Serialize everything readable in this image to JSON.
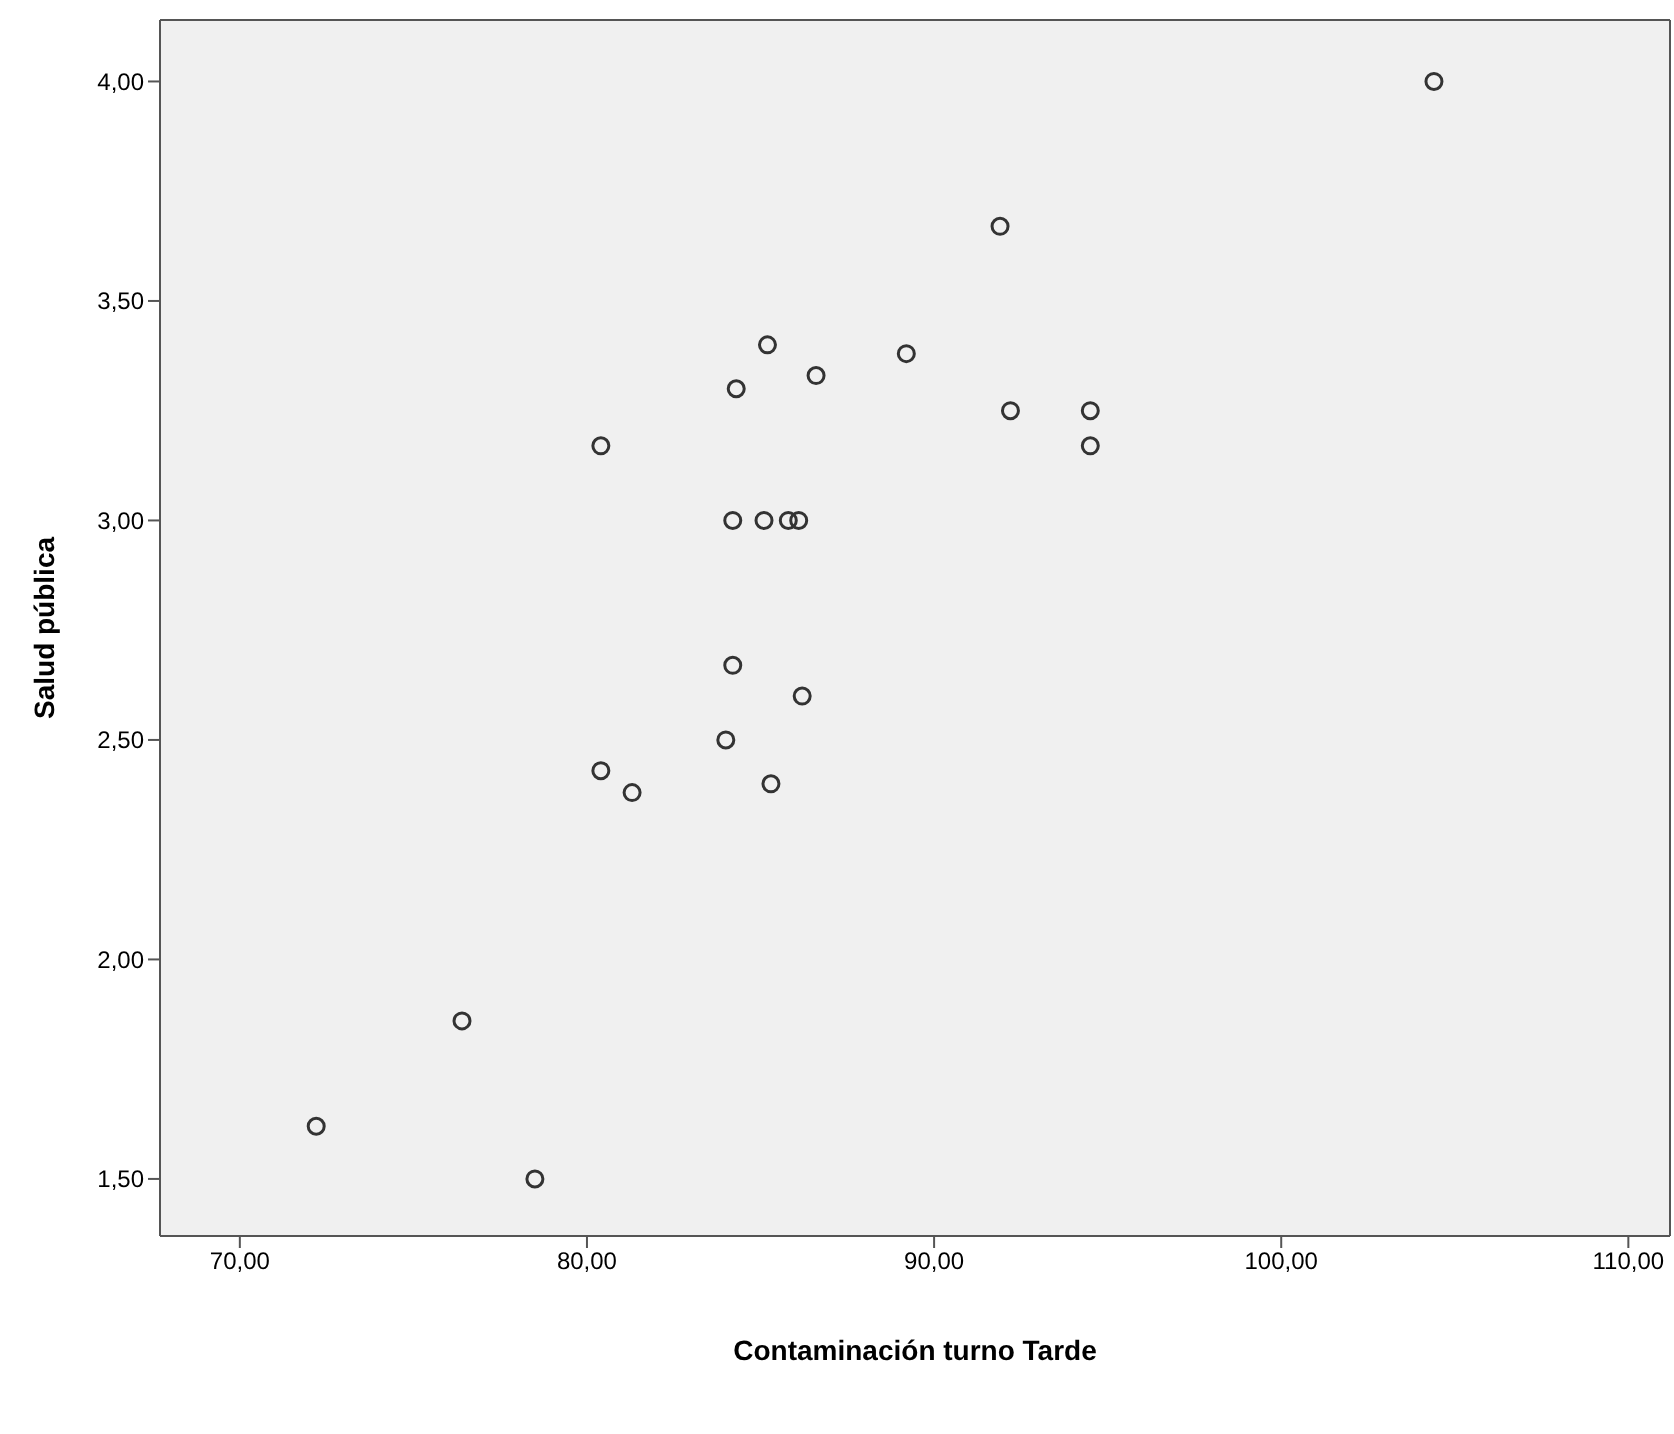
{
  "chart_data": {
    "type": "scatter",
    "xlabel": "Contaminación turno Tarde",
    "ylabel": "Salud pública",
    "x": [
      104.4,
      91.9,
      85.2,
      86.6,
      84.3,
      89.2,
      80.4,
      84.2,
      85.1,
      85.8,
      86.1,
      92.2,
      94.5,
      94.5,
      84.2,
      86.2,
      84.0,
      80.4,
      81.3,
      85.3,
      76.4,
      72.2,
      78.5
    ],
    "series": [
      {
        "color": "#333333",
        "values": [
          4.0,
          3.67,
          3.4,
          3.33,
          3.3,
          3.38,
          3.17,
          3.0,
          3.0,
          3.0,
          3.0,
          3.25,
          3.25,
          3.17,
          2.67,
          2.6,
          2.5,
          2.43,
          2.38,
          2.4,
          1.86,
          1.62,
          1.5
        ]
      }
    ],
    "xlim": [
      67.7,
      111.2
    ],
    "ylim": [
      1.37,
      4.14
    ],
    "xticks": [
      {
        "value": 70,
        "label": "70,00"
      },
      {
        "value": 80,
        "label": "80,00"
      },
      {
        "value": 90,
        "label": "90,00"
      },
      {
        "value": 100,
        "label": "100,00"
      },
      {
        "value": 110,
        "label": "110,00"
      }
    ],
    "yticks": [
      {
        "value": 1.5,
        "label": "1,50"
      },
      {
        "value": 2,
        "label": "2,00"
      },
      {
        "value": 2.5,
        "label": "2,50"
      },
      {
        "value": 3,
        "label": "3,00"
      },
      {
        "value": 3.5,
        "label": "3,50"
      },
      {
        "value": 4,
        "label": "4,00"
      }
    ],
    "marker": "circle"
  }
}
